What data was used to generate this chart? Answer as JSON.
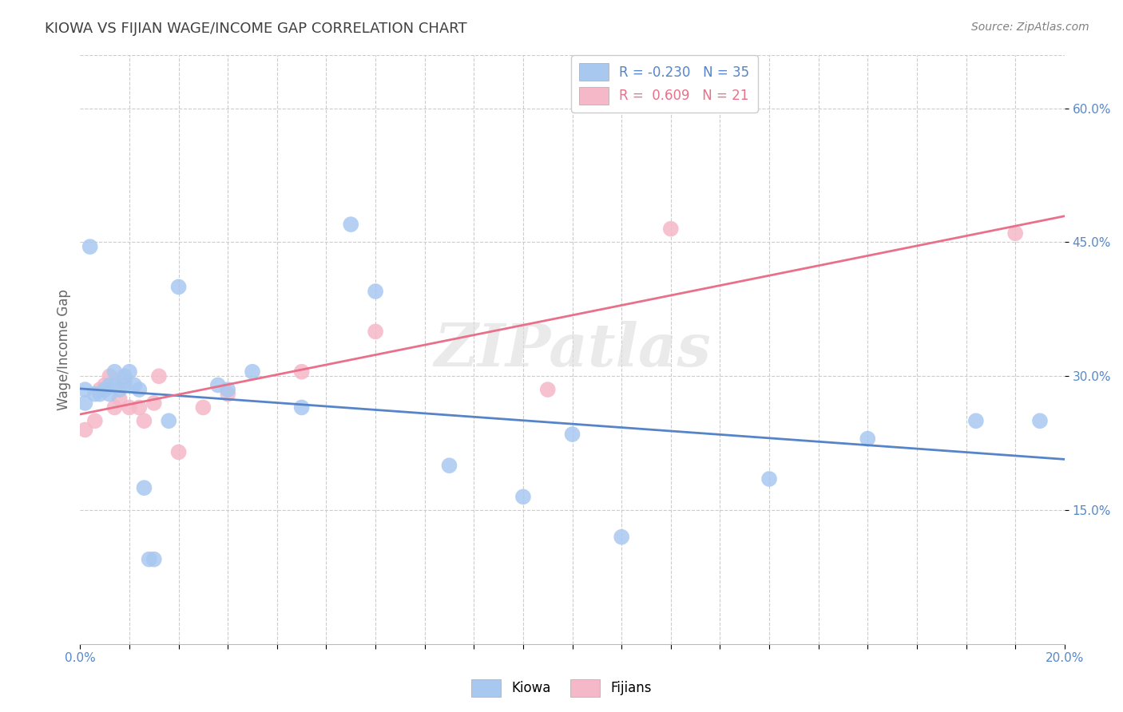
{
  "title": "KIOWA VS FIJIAN WAGE/INCOME GAP CORRELATION CHART",
  "source": "Source: ZipAtlas.com",
  "ylabel": "Wage/Income Gap",
  "watermark": "ZIPatlas",
  "legend_blue_label": "R = -0.230   N = 35",
  "legend_pink_label": "R =  0.609   N = 21",
  "blue_color": "#A8C8F0",
  "pink_color": "#F5B8C8",
  "blue_line_color": "#5585C8",
  "pink_line_color": "#E8708A",
  "background_color": "#FFFFFF",
  "grid_color": "#CCCCCC",
  "title_color": "#404040",
  "axis_label_color": "#5588CC",
  "xlim": [
    0.0,
    0.2
  ],
  "ylim": [
    0.0,
    0.66
  ],
  "xticks_major": [
    0.0,
    0.2
  ],
  "xticks_minor": [
    0.01,
    0.02,
    0.03,
    0.04,
    0.05,
    0.06,
    0.07,
    0.08,
    0.09,
    0.1,
    0.11,
    0.12,
    0.13,
    0.14,
    0.15,
    0.16,
    0.17,
    0.18,
    0.19
  ],
  "yticks": [
    0.15,
    0.3,
    0.45,
    0.6
  ],
  "kiowa_x": [
    0.001,
    0.001,
    0.002,
    0.003,
    0.004,
    0.005,
    0.006,
    0.006,
    0.007,
    0.007,
    0.008,
    0.009,
    0.009,
    0.01,
    0.011,
    0.012,
    0.013,
    0.014,
    0.015,
    0.018,
    0.02,
    0.028,
    0.03,
    0.035,
    0.045,
    0.055,
    0.06,
    0.075,
    0.09,
    0.1,
    0.11,
    0.14,
    0.16,
    0.182,
    0.195
  ],
  "kiowa_y": [
    0.285,
    0.27,
    0.445,
    0.28,
    0.28,
    0.285,
    0.29,
    0.28,
    0.29,
    0.305,
    0.285,
    0.3,
    0.29,
    0.305,
    0.29,
    0.285,
    0.175,
    0.095,
    0.095,
    0.25,
    0.4,
    0.29,
    0.285,
    0.305,
    0.265,
    0.47,
    0.395,
    0.2,
    0.165,
    0.235,
    0.12,
    0.185,
    0.23,
    0.25,
    0.25
  ],
  "fijian_x": [
    0.001,
    0.003,
    0.004,
    0.005,
    0.006,
    0.007,
    0.008,
    0.009,
    0.01,
    0.012,
    0.013,
    0.015,
    0.016,
    0.02,
    0.025,
    0.03,
    0.045,
    0.06,
    0.095,
    0.12,
    0.19
  ],
  "fijian_y": [
    0.24,
    0.25,
    0.285,
    0.29,
    0.3,
    0.265,
    0.275,
    0.295,
    0.265,
    0.265,
    0.25,
    0.27,
    0.3,
    0.215,
    0.265,
    0.28,
    0.305,
    0.35,
    0.285,
    0.465,
    0.46
  ]
}
